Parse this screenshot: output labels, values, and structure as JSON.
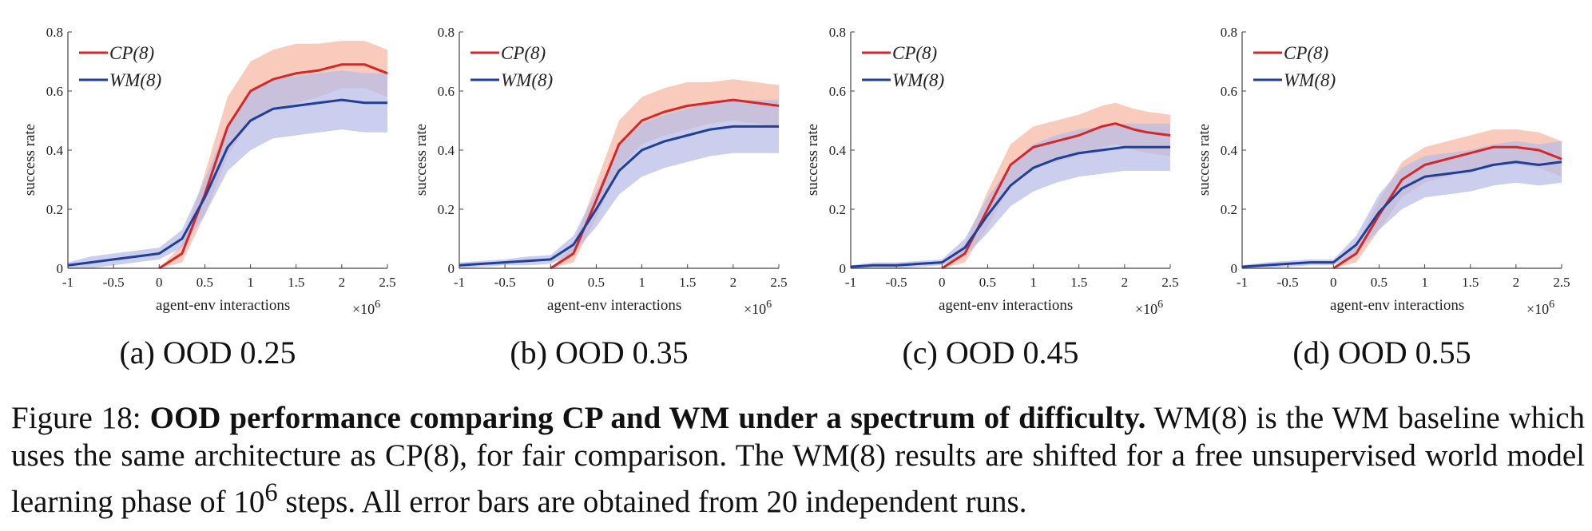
{
  "chart_data": [
    {
      "type": "line",
      "caption": "(a) OOD 0.25",
      "xlabel": "agent-env interactions",
      "ylabel": "success rate",
      "x_multiplier_base": "×10",
      "x_multiplier_exp": "6",
      "xlim": [
        -1,
        2.5
      ],
      "ylim": [
        0,
        0.8
      ],
      "xticks": [
        -1,
        -0.5,
        0,
        0.5,
        1,
        1.5,
        2,
        2.5
      ],
      "xtick_labels": [
        "-1",
        "-0.5",
        "0",
        "0.5",
        "1",
        "1.5",
        "2",
        "2.5"
      ],
      "yticks": [
        0,
        0.2,
        0.4,
        0.6,
        0.8
      ],
      "ytick_labels": [
        "0",
        "0.2",
        "0.4",
        "0.6",
        "0.8"
      ],
      "legend_position": "top-left",
      "series": [
        {
          "name": "CP(8)",
          "color": "#d62728",
          "band_color": "#f6b9a6",
          "x": [
            0,
            0.25,
            0.5,
            0.75,
            1,
            1.25,
            1.5,
            1.75,
            2,
            2.25,
            2.5
          ],
          "y": [
            0,
            0.05,
            0.25,
            0.48,
            0.6,
            0.64,
            0.66,
            0.67,
            0.69,
            0.69,
            0.66
          ],
          "band": [
            0,
            0.03,
            0.07,
            0.1,
            0.1,
            0.1,
            0.1,
            0.09,
            0.08,
            0.08,
            0.08
          ]
        },
        {
          "name": "WM(8)",
          "color": "#1f3f99",
          "band_color": "#b9bde6",
          "x": [
            -1,
            -0.75,
            -0.5,
            -0.25,
            0,
            0.25,
            0.5,
            0.75,
            1,
            1.25,
            1.5,
            1.75,
            2,
            2.25,
            2.5
          ],
          "y": [
            0.01,
            0.02,
            0.03,
            0.04,
            0.05,
            0.1,
            0.24,
            0.41,
            0.5,
            0.54,
            0.55,
            0.56,
            0.57,
            0.56,
            0.56
          ],
          "band": [
            0.01,
            0.02,
            0.02,
            0.02,
            0.02,
            0.03,
            0.06,
            0.08,
            0.1,
            0.1,
            0.1,
            0.1,
            0.1,
            0.1,
            0.1
          ]
        }
      ]
    },
    {
      "type": "line",
      "caption": "(b) OOD 0.35",
      "xlabel": "agent-env interactions",
      "ylabel": "success rate",
      "x_multiplier_base": "×10",
      "x_multiplier_exp": "6",
      "xlim": [
        -1,
        2.5
      ],
      "ylim": [
        0,
        0.8
      ],
      "xticks": [
        -1,
        -0.5,
        0,
        0.5,
        1,
        1.5,
        2,
        2.5
      ],
      "xtick_labels": [
        "-1",
        "-0.5",
        "0",
        "0.5",
        "1",
        "1.5",
        "2",
        "2.5"
      ],
      "yticks": [
        0,
        0.2,
        0.4,
        0.6,
        0.8
      ],
      "ytick_labels": [
        "0",
        "0.2",
        "0.4",
        "0.6",
        "0.8"
      ],
      "legend_position": "top-left",
      "series": [
        {
          "name": "CP(8)",
          "color": "#d62728",
          "band_color": "#f6b9a6",
          "x": [
            0,
            0.25,
            0.5,
            0.75,
            1,
            1.25,
            1.5,
            1.75,
            2,
            2.25,
            2.5
          ],
          "y": [
            0,
            0.05,
            0.23,
            0.42,
            0.5,
            0.53,
            0.55,
            0.56,
            0.57,
            0.56,
            0.55
          ],
          "band": [
            0,
            0.03,
            0.06,
            0.08,
            0.08,
            0.08,
            0.08,
            0.07,
            0.07,
            0.07,
            0.07
          ]
        },
        {
          "name": "WM(8)",
          "color": "#1f3f99",
          "band_color": "#b9bde6",
          "x": [
            -1,
            -0.75,
            -0.5,
            -0.25,
            0,
            0.25,
            0.5,
            0.75,
            1,
            1.25,
            1.5,
            1.75,
            2,
            2.25,
            2.5
          ],
          "y": [
            0.01,
            0.015,
            0.02,
            0.025,
            0.03,
            0.08,
            0.2,
            0.33,
            0.4,
            0.43,
            0.45,
            0.47,
            0.48,
            0.48,
            0.48
          ],
          "band": [
            0.01,
            0.01,
            0.01,
            0.015,
            0.015,
            0.03,
            0.06,
            0.08,
            0.09,
            0.09,
            0.09,
            0.09,
            0.09,
            0.09,
            0.09
          ]
        }
      ]
    },
    {
      "type": "line",
      "caption": "(c) OOD 0.45",
      "xlabel": "agent-env interactions",
      "ylabel": "success rate",
      "x_multiplier_base": "×10",
      "x_multiplier_exp": "6",
      "xlim": [
        -1,
        2.5
      ],
      "ylim": [
        0,
        0.8
      ],
      "xticks": [
        -1,
        -0.5,
        0,
        0.5,
        1,
        1.5,
        2,
        2.5
      ],
      "xtick_labels": [
        "-1",
        "-0.5",
        "0",
        "0.5",
        "1",
        "1.5",
        "2",
        "2.5"
      ],
      "yticks": [
        0,
        0.2,
        0.4,
        0.6,
        0.8
      ],
      "ytick_labels": [
        "0",
        "0.2",
        "0.4",
        "0.6",
        "0.8"
      ],
      "legend_position": "top-left",
      "series": [
        {
          "name": "CP(8)",
          "color": "#d62728",
          "band_color": "#f6b9a6",
          "x": [
            0,
            0.25,
            0.5,
            0.75,
            1,
            1.25,
            1.5,
            1.75,
            1.9,
            2.1,
            2.25,
            2.5
          ],
          "y": [
            0,
            0.05,
            0.2,
            0.35,
            0.41,
            0.43,
            0.45,
            0.48,
            0.49,
            0.47,
            0.46,
            0.45
          ],
          "band": [
            0,
            0.03,
            0.06,
            0.07,
            0.07,
            0.07,
            0.07,
            0.07,
            0.07,
            0.07,
            0.07,
            0.07
          ]
        },
        {
          "name": "WM(8)",
          "color": "#1f3f99",
          "band_color": "#b9bde6",
          "x": [
            -1,
            -0.75,
            -0.5,
            -0.25,
            0,
            0.25,
            0.5,
            0.75,
            1,
            1.25,
            1.5,
            1.75,
            2,
            2.25,
            2.5
          ],
          "y": [
            0.005,
            0.01,
            0.01,
            0.015,
            0.02,
            0.07,
            0.18,
            0.28,
            0.34,
            0.37,
            0.39,
            0.4,
            0.41,
            0.41,
            0.41
          ],
          "band": [
            0.005,
            0.01,
            0.01,
            0.01,
            0.01,
            0.03,
            0.06,
            0.07,
            0.08,
            0.08,
            0.08,
            0.08,
            0.08,
            0.08,
            0.08
          ]
        }
      ]
    },
    {
      "type": "line",
      "caption": "(d) OOD 0.55",
      "xlabel": "agent-env interactions",
      "ylabel": "success rate",
      "x_multiplier_base": "×10",
      "x_multiplier_exp": "6",
      "xlim": [
        -1,
        2.5
      ],
      "ylim": [
        0,
        0.8
      ],
      "xticks": [
        -1,
        -0.5,
        0,
        0.5,
        1,
        1.5,
        2,
        2.5
      ],
      "xtick_labels": [
        "-1",
        "-0.5",
        "0",
        "0.5",
        "1",
        "1.5",
        "2",
        "2.5"
      ],
      "yticks": [
        0,
        0.2,
        0.4,
        0.6,
        0.8
      ],
      "ytick_labels": [
        "0",
        "0.2",
        "0.4",
        "0.6",
        "0.8"
      ],
      "legend_position": "top-left",
      "series": [
        {
          "name": "CP(8)",
          "color": "#d62728",
          "band_color": "#f6b9a6",
          "x": [
            0,
            0.25,
            0.5,
            0.75,
            1,
            1.25,
            1.5,
            1.75,
            2,
            2.25,
            2.5
          ],
          "y": [
            0,
            0.05,
            0.18,
            0.3,
            0.35,
            0.37,
            0.39,
            0.41,
            0.41,
            0.4,
            0.37
          ],
          "band": [
            0,
            0.03,
            0.05,
            0.06,
            0.06,
            0.06,
            0.06,
            0.06,
            0.06,
            0.06,
            0.06
          ]
        },
        {
          "name": "WM(8)",
          "color": "#1f3f99",
          "band_color": "#b9bde6",
          "x": [
            -1,
            -0.75,
            -0.5,
            -0.25,
            0,
            0.25,
            0.5,
            0.75,
            1,
            1.25,
            1.5,
            1.75,
            2,
            2.25,
            2.5
          ],
          "y": [
            0.005,
            0.01,
            0.015,
            0.02,
            0.02,
            0.08,
            0.19,
            0.27,
            0.31,
            0.32,
            0.33,
            0.35,
            0.36,
            0.35,
            0.36
          ],
          "band": [
            0.005,
            0.01,
            0.01,
            0.01,
            0.01,
            0.03,
            0.06,
            0.07,
            0.07,
            0.07,
            0.07,
            0.07,
            0.07,
            0.07,
            0.07
          ]
        }
      ]
    }
  ],
  "figure_caption": {
    "label": "Figure 18:",
    "bold": "OOD performance comparing CP and WM under a spectrum of difficulty.",
    "text_1": "WM(8) is the WM baseline which uses the same architecture as CP(8), for fair comparison. The WM(8) results are shifted for a free unsupervised world model learning phase of 10",
    "sup": "6",
    "text_2": "steps. All error bars are obtained from 20 independent runs."
  }
}
